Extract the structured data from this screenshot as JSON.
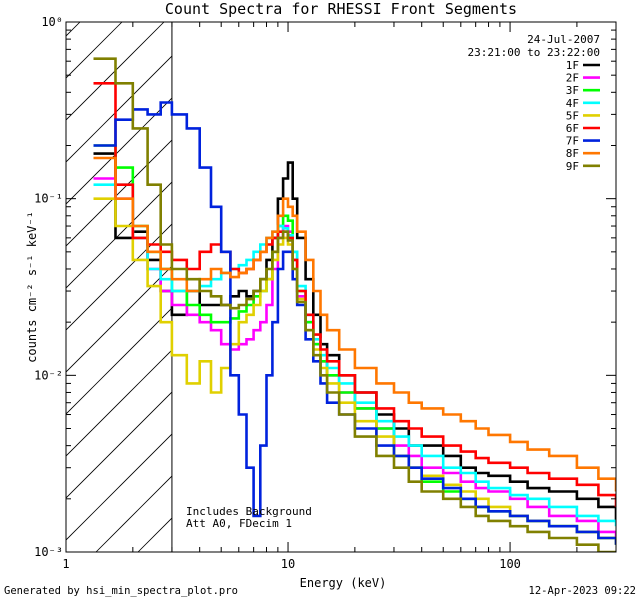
{
  "chart_data": {
    "type": "line",
    "title": "Count Spectra for RHESSI Front Segments",
    "xlabel": "Energy (keV)",
    "ylabel": "counts cm⁻² s⁻¹ keV⁻¹",
    "x_scale": "log",
    "y_scale": "log",
    "xlim": [
      1.0,
      300.0
    ],
    "ylim": [
      0.001,
      1.0
    ],
    "x_ticks": [
      {
        "value": 1,
        "label": "1"
      },
      {
        "value": 10,
        "label": "10"
      },
      {
        "value": 100,
        "label": "100"
      }
    ],
    "y_ticks": [
      {
        "value": 1,
        "label": "10⁰"
      },
      {
        "value": 0.1,
        "label": "10⁻¹"
      },
      {
        "value": 0.01,
        "label": "10⁻²"
      },
      {
        "value": 0.001,
        "label": "10⁻³"
      }
    ],
    "date": "24-Jul-2007",
    "time_range": "23:21:00 to 23:22:00",
    "annotations": [
      "Includes Background",
      "Att A0, FDecim 1"
    ],
    "shaded_region": {
      "xmin": 1.0,
      "xmax": 3.0,
      "style": "diagonal hatch"
    },
    "legend_position": "top-right",
    "series": [
      {
        "name": "1F",
        "color": "#000000",
        "x": [
          1.33,
          1.67,
          2.0,
          2.33,
          2.67,
          3.0,
          3.5,
          4.0,
          4.5,
          5.0,
          5.5,
          6.0,
          6.5,
          7.0,
          7.5,
          8.0,
          8.5,
          9.0,
          9.5,
          10.0,
          10.5,
          11.0,
          12.0,
          13.0,
          14.0,
          15.0,
          17.0,
          20.0,
          25.0,
          30.0,
          35.0,
          40.0,
          50.0,
          60.0,
          70.0,
          80.0,
          100.0,
          120.0,
          150.0,
          200.0,
          250.0,
          300.0
        ],
        "values": [
          0.18,
          0.06,
          0.065,
          0.045,
          0.03,
          0.022,
          0.03,
          0.025,
          0.025,
          0.025,
          0.028,
          0.03,
          0.028,
          0.03,
          0.035,
          0.045,
          0.06,
          0.1,
          0.13,
          0.16,
          0.1,
          0.06,
          0.035,
          0.022,
          0.015,
          0.013,
          0.01,
          0.008,
          0.006,
          0.005,
          0.004,
          0.004,
          0.0035,
          0.003,
          0.0028,
          0.0027,
          0.0025,
          0.0023,
          0.0022,
          0.002,
          0.0018,
          0.0015
        ]
      },
      {
        "name": "2F",
        "color": "#ff00ff",
        "x": [
          1.33,
          1.67,
          2.0,
          2.33,
          2.67,
          3.0,
          3.5,
          4.0,
          4.5,
          5.0,
          5.5,
          6.0,
          6.5,
          7.0,
          7.5,
          8.0,
          8.5,
          9.0,
          9.5,
          10.0,
          10.5,
          11.0,
          12.0,
          13.0,
          14.0,
          15.0,
          17.0,
          20.0,
          25.0,
          30.0,
          35.0,
          40.0,
          50.0,
          60.0,
          70.0,
          80.0,
          100.0,
          120.0,
          150.0,
          200.0,
          250.0,
          300.0
        ],
        "values": [
          0.13,
          0.1,
          0.06,
          0.04,
          0.03,
          0.025,
          0.022,
          0.02,
          0.018,
          0.015,
          0.014,
          0.015,
          0.016,
          0.018,
          0.02,
          0.025,
          0.04,
          0.06,
          0.07,
          0.065,
          0.045,
          0.028,
          0.02,
          0.015,
          0.012,
          0.01,
          0.008,
          0.0065,
          0.005,
          0.004,
          0.0035,
          0.003,
          0.0028,
          0.0025,
          0.0023,
          0.0022,
          0.002,
          0.0018,
          0.0016,
          0.0015,
          0.0013,
          0.0012
        ]
      },
      {
        "name": "3F",
        "color": "#00ff00",
        "x": [
          1.33,
          1.67,
          2.0,
          2.33,
          2.67,
          3.0,
          3.5,
          4.0,
          4.5,
          5.0,
          5.5,
          6.0,
          6.5,
          7.0,
          7.5,
          8.0,
          8.5,
          9.0,
          9.5,
          10.0,
          10.5,
          11.0,
          12.0,
          13.0,
          14.0,
          15.0,
          17.0,
          20.0,
          25.0,
          30.0,
          35.0,
          40.0,
          50.0,
          60.0,
          70.0,
          80.0,
          100.0,
          120.0,
          150.0,
          200.0,
          250.0,
          300.0
        ],
        "values": [
          0.2,
          0.15,
          0.07,
          0.05,
          0.04,
          0.03,
          0.025,
          0.022,
          0.02,
          0.02,
          0.021,
          0.023,
          0.025,
          0.028,
          0.03,
          0.035,
          0.05,
          0.07,
          0.08,
          0.075,
          0.05,
          0.03,
          0.02,
          0.015,
          0.012,
          0.01,
          0.008,
          0.0065,
          0.005,
          0.0035,
          0.003,
          0.0025,
          0.0022,
          0.002,
          0.0018,
          0.0017,
          0.0016,
          0.0015,
          0.0014,
          0.0013,
          0.0012,
          0.0011
        ]
      },
      {
        "name": "4F",
        "color": "#00ffff",
        "x": [
          1.33,
          1.67,
          2.0,
          2.33,
          2.67,
          3.0,
          3.5,
          4.0,
          4.5,
          5.0,
          5.5,
          6.0,
          6.5,
          7.0,
          7.5,
          8.0,
          8.5,
          9.0,
          9.5,
          10.0,
          10.5,
          11.0,
          12.0,
          13.0,
          14.0,
          15.0,
          17.0,
          20.0,
          25.0,
          30.0,
          35.0,
          40.0,
          50.0,
          60.0,
          70.0,
          80.0,
          100.0,
          120.0,
          150.0,
          200.0,
          250.0,
          300.0
        ],
        "values": [
          0.12,
          0.12,
          0.06,
          0.04,
          0.035,
          0.03,
          0.03,
          0.032,
          0.035,
          0.038,
          0.04,
          0.042,
          0.045,
          0.05,
          0.055,
          0.06,
          0.065,
          0.07,
          0.068,
          0.062,
          0.05,
          0.032,
          0.022,
          0.016,
          0.013,
          0.011,
          0.009,
          0.007,
          0.0055,
          0.0045,
          0.004,
          0.0035,
          0.003,
          0.0028,
          0.0025,
          0.0023,
          0.0021,
          0.002,
          0.0018,
          0.0016,
          0.0015,
          0.0014
        ]
      },
      {
        "name": "5F",
        "color": "#e0d000",
        "x": [
          1.33,
          1.67,
          2.0,
          2.33,
          2.67,
          3.0,
          3.5,
          4.0,
          4.5,
          5.0,
          5.5,
          6.0,
          6.5,
          7.0,
          7.5,
          8.0,
          8.5,
          9.0,
          9.5,
          10.0,
          10.5,
          11.0,
          12.0,
          13.0,
          14.0,
          15.0,
          17.0,
          20.0,
          25.0,
          30.0,
          35.0,
          40.0,
          50.0,
          60.0,
          70.0,
          80.0,
          100.0,
          120.0,
          150.0,
          200.0,
          250.0,
          300.0
        ],
        "values": [
          0.1,
          0.07,
          0.045,
          0.032,
          0.02,
          0.013,
          0.009,
          0.012,
          0.008,
          0.011,
          0.015,
          0.02,
          0.022,
          0.025,
          0.03,
          0.035,
          0.045,
          0.055,
          0.06,
          0.055,
          0.04,
          0.027,
          0.018,
          0.014,
          0.011,
          0.009,
          0.007,
          0.0055,
          0.0045,
          0.0035,
          0.003,
          0.0027,
          0.0024,
          0.0022,
          0.002,
          0.0018,
          0.0016,
          0.0015,
          0.0014,
          0.0013,
          0.0012,
          0.0011
        ]
      },
      {
        "name": "6F",
        "color": "#ff0000",
        "x": [
          1.33,
          1.67,
          2.0,
          2.33,
          2.67,
          3.0,
          3.5,
          4.0,
          4.5,
          5.0,
          5.5,
          6.0,
          6.5,
          7.0,
          7.5,
          8.0,
          8.5,
          9.0,
          9.5,
          10.0,
          10.5,
          11.0,
          12.0,
          13.0,
          14.0,
          15.0,
          17.0,
          20.0,
          25.0,
          30.0,
          35.0,
          40.0,
          50.0,
          60.0,
          70.0,
          80.0,
          100.0,
          120.0,
          150.0,
          200.0,
          250.0,
          300.0
        ],
        "values": [
          0.45,
          0.12,
          0.06,
          0.055,
          0.05,
          0.045,
          0.04,
          0.05,
          0.055,
          0.05,
          0.04,
          0.038,
          0.04,
          0.045,
          0.05,
          0.055,
          0.06,
          0.065,
          0.065,
          0.06,
          0.045,
          0.03,
          0.022,
          0.017,
          0.014,
          0.012,
          0.01,
          0.008,
          0.0065,
          0.0055,
          0.005,
          0.0045,
          0.004,
          0.0037,
          0.0034,
          0.0032,
          0.003,
          0.0028,
          0.0026,
          0.0024,
          0.0021,
          0.0018
        ]
      },
      {
        "name": "7F",
        "color": "#0022dd",
        "x": [
          1.33,
          1.67,
          2.0,
          2.33,
          2.67,
          3.0,
          3.5,
          4.0,
          4.5,
          5.0,
          5.5,
          6.0,
          6.5,
          7.0,
          7.5,
          8.0,
          8.5,
          9.0,
          9.5,
          10.0,
          10.5,
          11.0,
          12.0,
          13.0,
          14.0,
          15.0,
          17.0,
          20.0,
          25.0,
          30.0,
          35.0,
          40.0,
          50.0,
          60.0,
          70.0,
          80.0,
          100.0,
          120.0,
          150.0,
          200.0,
          250.0,
          300.0
        ],
        "values": [
          0.2,
          0.28,
          0.32,
          0.3,
          0.35,
          0.3,
          0.25,
          0.15,
          0.09,
          0.05,
          0.01,
          0.006,
          0.003,
          0.0016,
          0.004,
          0.01,
          0.02,
          0.04,
          0.05,
          0.05,
          0.035,
          0.025,
          0.016,
          0.012,
          0.009,
          0.007,
          0.006,
          0.005,
          0.004,
          0.0035,
          0.003,
          0.0026,
          0.0023,
          0.002,
          0.0018,
          0.0017,
          0.0016,
          0.0015,
          0.0014,
          0.0013,
          0.0012,
          0.0011
        ]
      },
      {
        "name": "8F",
        "color": "#ff7700",
        "x": [
          1.33,
          1.67,
          2.0,
          2.33,
          2.67,
          3.0,
          3.5,
          4.0,
          4.5,
          5.0,
          5.5,
          6.0,
          6.5,
          7.0,
          7.5,
          8.0,
          8.5,
          9.0,
          9.5,
          10.0,
          10.5,
          11.0,
          12.0,
          13.0,
          14.0,
          15.0,
          17.0,
          20.0,
          25.0,
          30.0,
          35.0,
          40.0,
          50.0,
          60.0,
          70.0,
          80.0,
          100.0,
          120.0,
          150.0,
          200.0,
          250.0,
          300.0
        ],
        "values": [
          0.17,
          0.1,
          0.07,
          0.05,
          0.04,
          0.035,
          0.03,
          0.035,
          0.04,
          0.038,
          0.036,
          0.038,
          0.04,
          0.045,
          0.05,
          0.06,
          0.065,
          0.08,
          0.1,
          0.09,
          0.08,
          0.065,
          0.045,
          0.03,
          0.022,
          0.018,
          0.014,
          0.011,
          0.009,
          0.008,
          0.007,
          0.0065,
          0.006,
          0.0055,
          0.005,
          0.0046,
          0.0042,
          0.0038,
          0.0035,
          0.003,
          0.0026,
          0.0022
        ]
      },
      {
        "name": "9F",
        "color": "#808000",
        "x": [
          1.33,
          1.67,
          2.0,
          2.33,
          2.67,
          3.0,
          3.5,
          4.0,
          4.5,
          5.0,
          5.5,
          6.0,
          6.5,
          7.0,
          7.5,
          8.0,
          8.5,
          9.0,
          9.5,
          10.0,
          10.5,
          11.0,
          12.0,
          13.0,
          14.0,
          15.0,
          17.0,
          20.0,
          25.0,
          30.0,
          35.0,
          40.0,
          50.0,
          60.0,
          70.0,
          80.0,
          100.0,
          120.0,
          150.0,
          200.0,
          250.0,
          300.0
        ],
        "values": [
          0.62,
          0.45,
          0.25,
          0.12,
          0.055,
          0.04,
          0.035,
          0.03,
          0.028,
          0.025,
          0.024,
          0.025,
          0.027,
          0.03,
          0.035,
          0.04,
          0.05,
          0.06,
          0.065,
          0.058,
          0.04,
          0.026,
          0.018,
          0.013,
          0.01,
          0.008,
          0.006,
          0.0045,
          0.0035,
          0.003,
          0.0025,
          0.0022,
          0.002,
          0.0018,
          0.0016,
          0.0015,
          0.0014,
          0.0013,
          0.0012,
          0.0011,
          0.001,
          0.001
        ]
      }
    ]
  },
  "footer": {
    "generated_by": "Generated by hsi_min_spectra_plot.pro",
    "timestamp": "12-Apr-2023 09:22"
  }
}
